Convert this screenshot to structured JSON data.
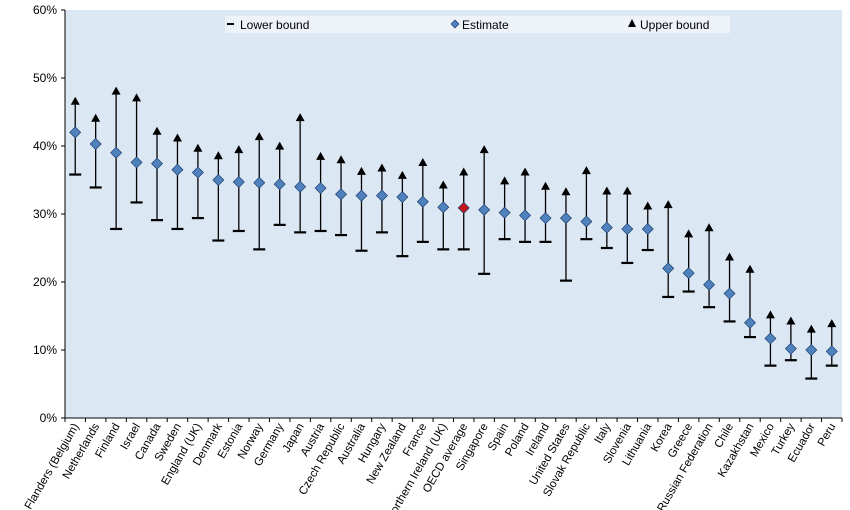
{
  "chart_data": {
    "type": "scatter",
    "title": "",
    "xlabel": "",
    "ylabel": "",
    "ylim": [
      0,
      60
    ],
    "y_ticks": [
      "0%",
      "10%",
      "20%",
      "30%",
      "40%",
      "50%",
      "60%"
    ],
    "grid": false,
    "legend": {
      "placement": "top",
      "items": [
        {
          "label": "Lower bound",
          "marker": "dash"
        },
        {
          "label": "Estimate",
          "marker": "diamond"
        },
        {
          "label": "Upper bound",
          "marker": "triangle"
        }
      ]
    },
    "colors": {
      "plot_bg": "#dbe8f4",
      "estimate": "#4f81bd",
      "highlight": "#c0161c",
      "bar": "#000000",
      "legend_bg": "#eef3f9"
    },
    "highlight_category": "OECD average",
    "categories": [
      "Flanders (Belgium)",
      "Netherlands",
      "Finland",
      "Israel",
      "Canada",
      "Sweden",
      "England (UK)",
      "Denmark",
      "Estonia",
      "Norway",
      "Germany",
      "Japan",
      "Austria",
      "Czech Republic",
      "Australia",
      "Hungary",
      "New Zealand",
      "France",
      "Northern Ireland (UK)",
      "OECD average",
      "Singapore",
      "Spain",
      "Poland",
      "Ireland",
      "United States",
      "Slovak Republic",
      "Italy",
      "Slovenia",
      "Lithuania",
      "Korea",
      "Greece",
      "Russian Federation",
      "Chile",
      "Kazakhstan",
      "Mexico",
      "Turkey",
      "Ecuador",
      "Peru"
    ],
    "series": [
      {
        "name": "Lower bound",
        "values": [
          35.8,
          33.9,
          27.8,
          31.7,
          29.1,
          27.8,
          29.4,
          26.1,
          27.5,
          24.8,
          28.4,
          27.3,
          27.5,
          26.9,
          24.6,
          27.3,
          23.8,
          25.9,
          24.8,
          24.8,
          21.2,
          26.3,
          25.9,
          25.9,
          20.2,
          26.3,
          25.0,
          22.8,
          24.7,
          17.8,
          18.6,
          16.3,
          14.2,
          11.9,
          7.7,
          8.5,
          5.8,
          7.7
        ]
      },
      {
        "name": "Estimate",
        "values": [
          42.0,
          40.3,
          39.0,
          37.6,
          37.4,
          36.5,
          36.1,
          35.0,
          34.7,
          34.6,
          34.4,
          34.0,
          33.8,
          32.9,
          32.7,
          32.7,
          32.5,
          31.8,
          31.0,
          30.9,
          30.6,
          30.2,
          29.8,
          29.4,
          29.4,
          28.9,
          28.0,
          27.8,
          27.8,
          22.0,
          21.3,
          19.6,
          18.3,
          14.0,
          11.7,
          10.2,
          10.0,
          9.8
        ]
      },
      {
        "name": "Upper bound",
        "values": [
          46.5,
          44.0,
          48.0,
          47.0,
          42.1,
          41.1,
          39.6,
          38.5,
          39.4,
          41.3,
          39.9,
          44.1,
          38.4,
          37.9,
          36.2,
          36.7,
          35.6,
          37.5,
          34.2,
          36.1,
          39.4,
          34.8,
          36.1,
          34.0,
          33.2,
          36.3,
          33.3,
          33.3,
          31.1,
          31.3,
          27.0,
          27.9,
          23.6,
          21.8,
          15.1,
          14.2,
          13.0,
          13.8
        ]
      }
    ]
  }
}
